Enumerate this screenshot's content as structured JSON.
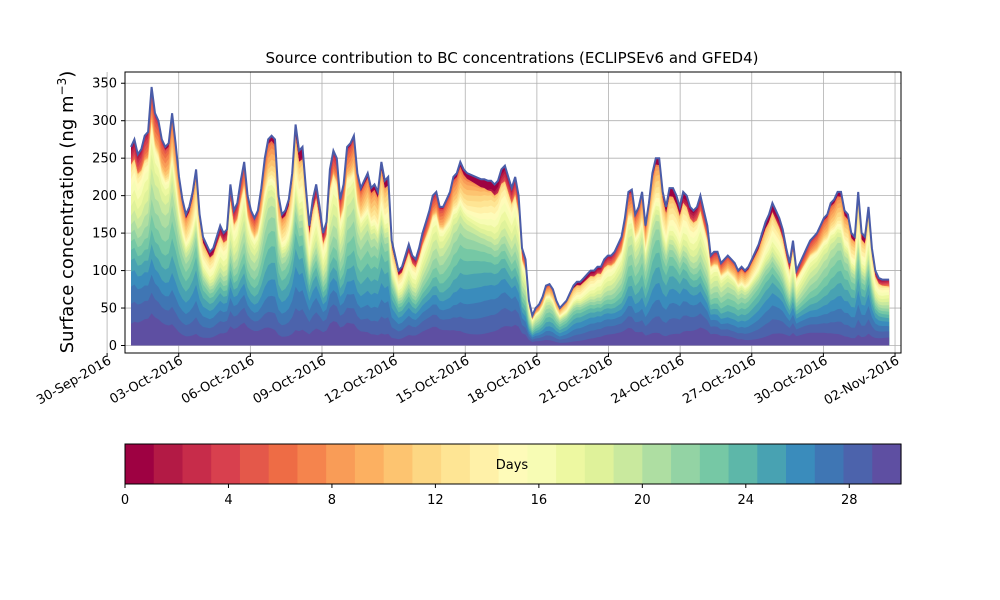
{
  "chart_data": {
    "type": "area",
    "title": "Source contribution to BC concentrations (ECLIPSEv6 and GFED4)",
    "ylabel": "Surface concentration (ng m",
    "ylabel_sup": "−3",
    "ylabel_close": ")",
    "xlabel": "",
    "ylim": [
      -10,
      365
    ],
    "xlim": [
      "2016-09-30T18:00",
      "2016-11-02T06:00"
    ],
    "yticks": [
      0,
      50,
      100,
      150,
      200,
      250,
      300,
      350
    ],
    "xticks": [
      "30-Sep-2016",
      "03-Oct-2016",
      "06-Oct-2016",
      "09-Oct-2016",
      "12-Oct-2016",
      "15-Oct-2016",
      "18-Oct-2016",
      "21-Oct-2016",
      "24-Oct-2016",
      "27-Oct-2016",
      "30-Oct-2016",
      "02-Nov-2016"
    ],
    "grid": true,
    "x_start": "2016-10-01T00:00",
    "x_end": "2016-11-01T18:00",
    "total": [
      265,
      275,
      255,
      262,
      280,
      285,
      345,
      310,
      300,
      275,
      265,
      270,
      310,
      270,
      225,
      195,
      175,
      185,
      205,
      235,
      175,
      145,
      135,
      125,
      130,
      145,
      160,
      150,
      155,
      215,
      180,
      190,
      220,
      245,
      200,
      180,
      170,
      180,
      210,
      250,
      275,
      280,
      275,
      200,
      175,
      180,
      195,
      230,
      295,
      260,
      265,
      210,
      160,
      195,
      215,
      185,
      150,
      165,
      235,
      260,
      250,
      195,
      215,
      265,
      270,
      280,
      230,
      210,
      220,
      230,
      210,
      215,
      205,
      245,
      220,
      225,
      140,
      120,
      100,
      105,
      120,
      135,
      120,
      115,
      130,
      150,
      165,
      180,
      200,
      205,
      185,
      185,
      195,
      205,
      225,
      230,
      245,
      235,
      230,
      228,
      226,
      224,
      222,
      222,
      220,
      220,
      215,
      220,
      235,
      240,
      225,
      210,
      225,
      200,
      130,
      115,
      60,
      40,
      50,
      55,
      65,
      80,
      82,
      75,
      60,
      50,
      55,
      60,
      70,
      80,
      85,
      85,
      90,
      95,
      100,
      100,
      105,
      105,
      115,
      120,
      120,
      125,
      135,
      145,
      170,
      205,
      208,
      175,
      185,
      205,
      160,
      190,
      230,
      250,
      250,
      205,
      185,
      210,
      210,
      200,
      185,
      205,
      200,
      185,
      180,
      185,
      200,
      180,
      160,
      120,
      125,
      125,
      110,
      115,
      120,
      115,
      110,
      100,
      105,
      100,
      105,
      115,
      125,
      135,
      150,
      165,
      175,
      190,
      180,
      170,
      155,
      130,
      110,
      140,
      100,
      110,
      120,
      130,
      140,
      145,
      150,
      160,
      170,
      175,
      190,
      195,
      205,
      205,
      180,
      175,
      150,
      145,
      205,
      150,
      145,
      185,
      130,
      100,
      90,
      88,
      88,
      88
    ],
    "colorbar": {
      "label": "Days",
      "vmin": 0,
      "vmax": 30,
      "ticks": [
        0,
        4,
        8,
        12,
        16,
        20,
        24,
        28
      ],
      "colors": [
        "#9e0142",
        "#b31a45",
        "#c72c4a",
        "#d8404e",
        "#e4584a",
        "#ee6c45",
        "#f5844d",
        "#f99c57",
        "#fcb061",
        "#fdc470",
        "#fdd783",
        "#fee594",
        "#fff1a8",
        "#fefbb9",
        "#f7fcb4",
        "#edf8a1",
        "#dff29a",
        "#c9e99e",
        "#aedea2",
        "#93d3a4",
        "#76c8a5",
        "#5db7a9",
        "#48a2b2",
        "#3a8cbc",
        "#3f76b4",
        "#4c63ac",
        "#5e4fa2"
      ]
    }
  }
}
